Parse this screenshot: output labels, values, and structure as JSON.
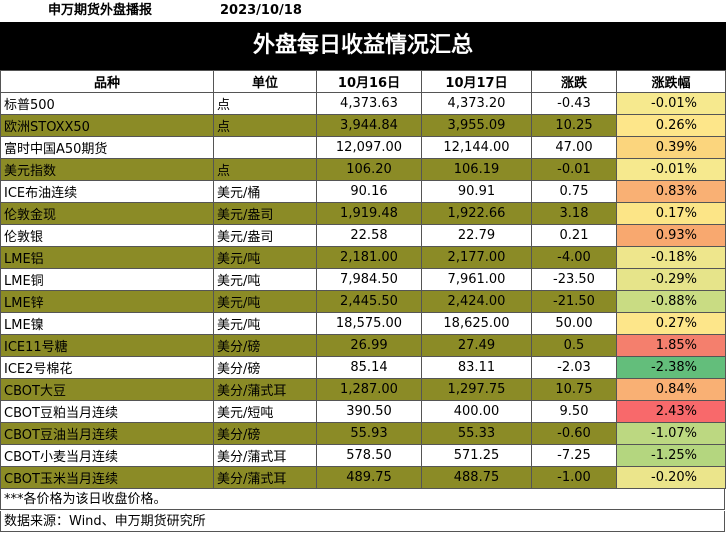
{
  "header": {
    "brand": "申万期货外盘播报",
    "date": "2023/10/18",
    "title": "外盘每日收益情况汇总"
  },
  "columns": [
    "品种",
    "单位",
    "10月16日",
    "10月17日",
    "涨跌",
    "涨跌幅"
  ],
  "rows": [
    {
      "name": "标普500",
      "unit": "点",
      "d1": "4,373.63",
      "d2": "4,373.20",
      "chg": "-0.43",
      "pct": "-0.01%",
      "style": "white",
      "pct_color": "#f6e98e"
    },
    {
      "name": "欧洲STOXX50",
      "unit": "点",
      "d1": "3,944.84",
      "d2": "3,955.09",
      "chg": "10.25",
      "pct": "0.26%",
      "style": "olive",
      "pct_color": "#fde68a"
    },
    {
      "name": "富时中国A50期货",
      "unit": "",
      "d1": "12,097.00",
      "d2": "12,144.00",
      "chg": "47.00",
      "pct": "0.39%",
      "style": "white",
      "pct_color": "#fbd57d"
    },
    {
      "name": "美元指数",
      "unit": "点",
      "d1": "106.20",
      "d2": "106.19",
      "chg": "-0.01",
      "pct": "-0.01%",
      "style": "olive",
      "pct_color": "#f6e98e"
    },
    {
      "name": "ICE布油连续",
      "unit": "美元/桶",
      "d1": "90.16",
      "d2": "90.91",
      "chg": "0.75",
      "pct": "0.83%",
      "style": "white",
      "pct_color": "#f9b074"
    },
    {
      "name": "伦敦金现",
      "unit": "美元/盎司",
      "d1": "1,919.48",
      "d2": "1,922.66",
      "chg": "3.18",
      "pct": "0.17%",
      "style": "olive",
      "pct_color": "#fce587"
    },
    {
      "name": "伦敦银",
      "unit": "美元/盎司",
      "d1": "22.58",
      "d2": "22.79",
      "chg": "0.21",
      "pct": "0.93%",
      "style": "white",
      "pct_color": "#f8a86f"
    },
    {
      "name": "LME铝",
      "unit": "美元/吨",
      "d1": "2,181.00",
      "d2": "2,177.00",
      "chg": "-4.00",
      "pct": "-0.18%",
      "style": "olive",
      "pct_color": "#eee68c"
    },
    {
      "name": "LME铜",
      "unit": "美元/吨",
      "d1": "7,984.50",
      "d2": "7,961.00",
      "chg": "-23.50",
      "pct": "-0.29%",
      "style": "white",
      "pct_color": "#e6e48a"
    },
    {
      "name": "LME锌",
      "unit": "美元/吨",
      "d1": "2,445.50",
      "d2": "2,424.00",
      "chg": "-21.50",
      "pct": "-0.88%",
      "style": "olive",
      "pct_color": "#c9dc83"
    },
    {
      "name": "LME镍",
      "unit": "美元/吨",
      "d1": "18,575.00",
      "d2": "18,625.00",
      "chg": "50.00",
      "pct": "0.27%",
      "style": "white",
      "pct_color": "#fde68a"
    },
    {
      "name": "ICE11号糖",
      "unit": "美分/磅",
      "d1": "26.99",
      "d2": "27.49",
      "chg": "0.5",
      "pct": "1.85%",
      "style": "olive",
      "pct_color": "#f47f6d"
    },
    {
      "name": "ICE2号棉花",
      "unit": "美分/磅",
      "d1": "85.14",
      "d2": "83.11",
      "chg": "-2.03",
      "pct": "-2.38%",
      "style": "white",
      "pct_color": "#63be7b"
    },
    {
      "name": "CBOT大豆",
      "unit": "美分/蒲式耳",
      "d1": "1,287.00",
      "d2": "1,297.75",
      "chg": "10.75",
      "pct": "0.84%",
      "style": "olive",
      "pct_color": "#f9b074"
    },
    {
      "name": "CBOT豆粕当月连续",
      "unit": "美元/短吨",
      "d1": "390.50",
      "d2": "400.00",
      "chg": "9.50",
      "pct": "2.43%",
      "style": "white",
      "pct_color": "#f8696b"
    },
    {
      "name": "CBOT豆油当月连续",
      "unit": "美分/磅",
      "d1": "55.93",
      "d2": "55.33",
      "chg": "-0.60",
      "pct": "-1.07%",
      "style": "olive",
      "pct_color": "#bcd881"
    },
    {
      "name": "CBOT小麦当月连续",
      "unit": "美分/蒲式耳",
      "d1": "578.50",
      "d2": "571.25",
      "chg": "-7.25",
      "pct": "-1.25%",
      "style": "white",
      "pct_color": "#b4d67f"
    },
    {
      "name": "CBOT玉米当月连续",
      "unit": "美分/蒲式耳",
      "d1": "489.75",
      "d2": "488.75",
      "chg": "-1.00",
      "pct": "-0.20%",
      "style": "olive",
      "pct_color": "#ebe58b"
    }
  ],
  "footer": {
    "note": "***各价格为该日收盘价格。",
    "source": "数据来源：Wind、申万期货研究所"
  },
  "colors": {
    "olive": "#8b8b26",
    "banner": "#000000"
  }
}
